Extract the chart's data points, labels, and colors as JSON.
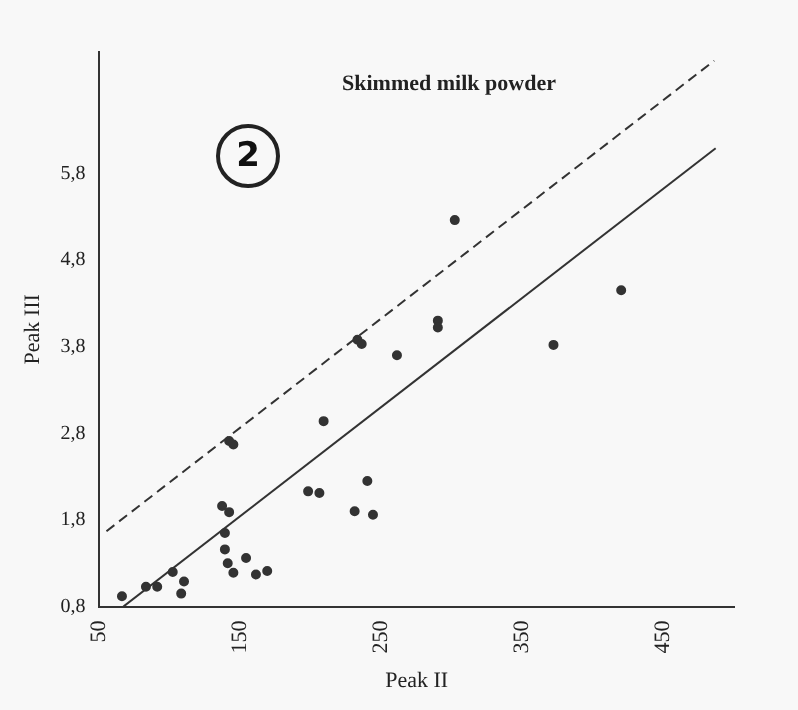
{
  "chart_data": {
    "type": "scatter",
    "title": "Skimmed milk powder",
    "xlabel": "Peak II",
    "ylabel": "Peak III",
    "annotations": [
      "2"
    ],
    "xlim": [
      50,
      500
    ],
    "xticks": [
      50,
      150,
      250,
      350,
      450
    ],
    "ylim": [
      0.8,
      7.2
    ],
    "yticks": [
      {
        "value": 0.8,
        "label": "0,8"
      },
      {
        "value": 1.8,
        "label": "1,8"
      },
      {
        "value": 2.8,
        "label": "2,8"
      },
      {
        "value": 3.8,
        "label": "3,8"
      },
      {
        "value": 4.8,
        "label": "4,8"
      },
      {
        "value": 5.8,
        "label": "5,8"
      }
    ],
    "grid": false,
    "series": [
      {
        "type": "scatter",
        "color": "#333333",
        "marker": "circle",
        "x": [
          66,
          83,
          91,
          102,
          108,
          110,
          137,
          142,
          139,
          139,
          141,
          145,
          154,
          161,
          169,
          142,
          145,
          198,
          206,
          209,
          231,
          240,
          244,
          233,
          236,
          261,
          290,
          290,
          302,
          372,
          420
        ],
        "values": [
          0.92,
          1.03,
          1.03,
          1.2,
          0.95,
          1.09,
          1.96,
          1.89,
          1.65,
          1.46,
          1.3,
          1.19,
          1.36,
          1.17,
          1.21,
          2.71,
          2.67,
          2.13,
          2.11,
          2.94,
          1.9,
          2.25,
          1.86,
          3.88,
          3.83,
          3.7,
          4.1,
          4.02,
          5.26,
          3.82,
          4.45
        ]
      },
      {
        "type": "line",
        "color": "#333333",
        "line_style": "solid",
        "x": [
          67,
          487
        ],
        "values": [
          0.8,
          6.09
        ]
      },
      {
        "type": "line",
        "color": "#333333",
        "line_style": "dashed",
        "x": [
          55,
          486
        ],
        "values": [
          1.67,
          7.1
        ]
      }
    ]
  }
}
